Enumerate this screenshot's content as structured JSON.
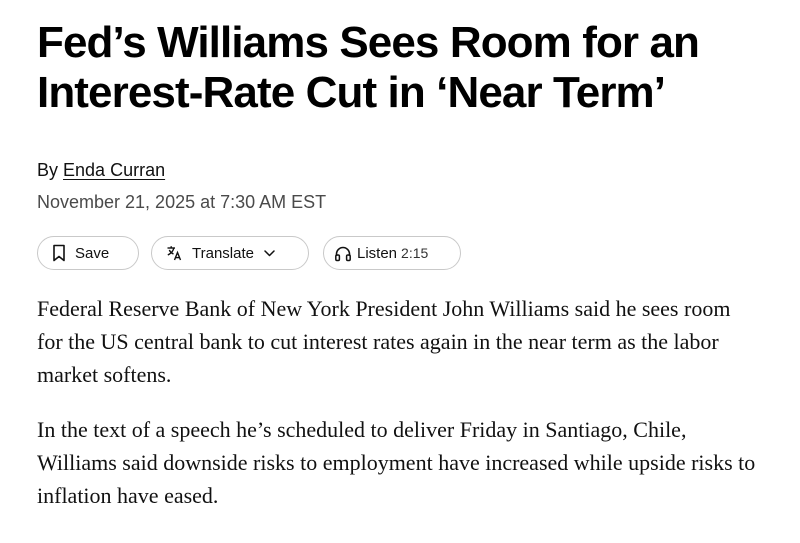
{
  "article": {
    "headline_line1": "Fed’s Williams Sees Room for an",
    "headline_line2": "Interest-Rate Cut in ‘Near Term’",
    "byline_prefix": "By",
    "author": "Enda Curran",
    "date": "November 21, 2025 at 7:30 AM EST",
    "paragraphs": [
      "Federal Reserve Bank of New York President John Williams said he sees room for the US central bank to cut interest rates again in the near term as the labor market softens.",
      "In the text of a speech he’s scheduled to deliver Friday in Santiago, Chile, Williams said downside risks to employment have increased while upside risks to inflation have eased."
    ]
  },
  "actions": {
    "save_label": "Save",
    "save_icon": "bookmark-icon",
    "translate_label": "Translate",
    "translate_icon": "translate-icon",
    "translate_chevron_icon": "chevron-down-icon",
    "listen_label": "Listen",
    "listen_duration": "2:15",
    "listen_icon": "headphones-icon"
  }
}
